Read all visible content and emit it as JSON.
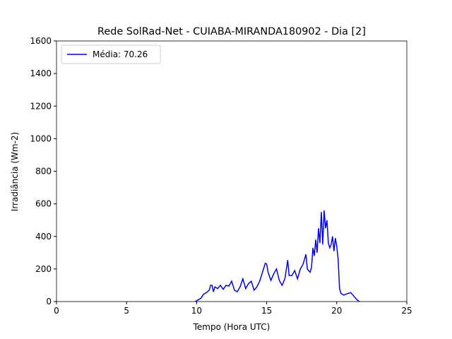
{
  "chart_data": {
    "type": "line",
    "title": "Rede SolRad-Net - CUIABA-MIRANDA180902 - Dia [2]",
    "x_label": "Tempo (Hora UTC)",
    "y_label": "Irradiância (Wm-2)",
    "x": [
      9.9,
      10.1,
      10.3,
      10.5,
      10.7,
      10.9,
      11.0,
      11.1,
      11.2,
      11.3,
      11.5,
      11.7,
      11.9,
      12.1,
      12.3,
      12.5,
      12.7,
      12.9,
      13.1,
      13.3,
      13.5,
      13.7,
      13.9,
      14.1,
      14.3,
      14.5,
      14.7,
      14.9,
      15.0,
      15.1,
      15.3,
      15.5,
      15.7,
      15.9,
      16.1,
      16.3,
      16.5,
      16.6,
      16.8,
      17.0,
      17.2,
      17.4,
      17.6,
      17.8,
      17.9,
      18.1,
      18.2,
      18.3,
      18.4,
      18.5,
      18.6,
      18.7,
      18.8,
      18.9,
      19.0,
      19.1,
      19.2,
      19.3,
      19.4,
      19.5,
      19.6,
      19.7,
      19.8,
      19.9,
      20.0,
      20.1,
      20.2,
      20.3,
      20.5,
      20.8,
      21.0,
      21.2,
      21.4,
      21.6
    ],
    "series": [
      {
        "name": "Média: 70.26",
        "color": "#0000ff",
        "values": [
          0,
          10,
          20,
          45,
          55,
          70,
          100,
          100,
          60,
          90,
          80,
          100,
          75,
          100,
          95,
          125,
          70,
          60,
          90,
          140,
          80,
          110,
          125,
          70,
          90,
          125,
          180,
          235,
          230,
          180,
          130,
          170,
          200,
          130,
          100,
          140,
          255,
          160,
          160,
          190,
          140,
          200,
          230,
          290,
          200,
          180,
          210,
          330,
          280,
          380,
          300,
          450,
          360,
          550,
          350,
          560,
          450,
          500,
          360,
          330,
          350,
          400,
          310,
          390,
          340,
          260,
          80,
          50,
          40,
          50,
          55,
          35,
          15,
          0
        ]
      }
    ],
    "xlim": [
      0,
      25
    ],
    "xticks": [
      0,
      5,
      10,
      15,
      20,
      25
    ],
    "ylim": [
      0,
      1600
    ],
    "yticks": [
      0,
      200,
      400,
      600,
      800,
      1000,
      1200,
      1400,
      1600
    ],
    "legend": "upper left",
    "grid": false
  }
}
